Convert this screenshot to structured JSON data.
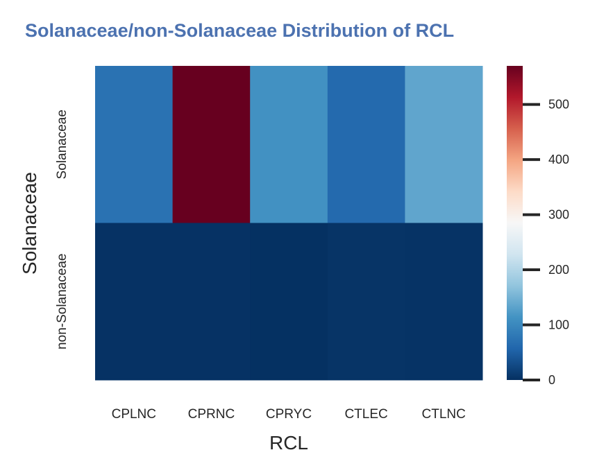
{
  "chart_data": {
    "type": "heatmap",
    "title": "Solanaceae/non-Solanaceae Distribution of RCL",
    "xlabel": "RCL",
    "ylabel": "Solanaceae",
    "x_categories": [
      "CPLNC",
      "CPRNC",
      "CPRYC",
      "CTLEC",
      "CTLNC"
    ],
    "y_categories": [
      "Solanaceae",
      "non-Solanaceae"
    ],
    "values": [
      [
        72,
        570,
        112,
        62,
        135
      ],
      [
        2,
        2,
        1,
        4,
        3
      ]
    ],
    "colorbar": {
      "cmap": "RdBu_r",
      "vmin": 0,
      "vmax": 570,
      "ticks": [
        0,
        100,
        200,
        300,
        400,
        500
      ],
      "tick_labels": [
        "0",
        "100",
        "200",
        "300",
        "400",
        "500"
      ]
    }
  }
}
